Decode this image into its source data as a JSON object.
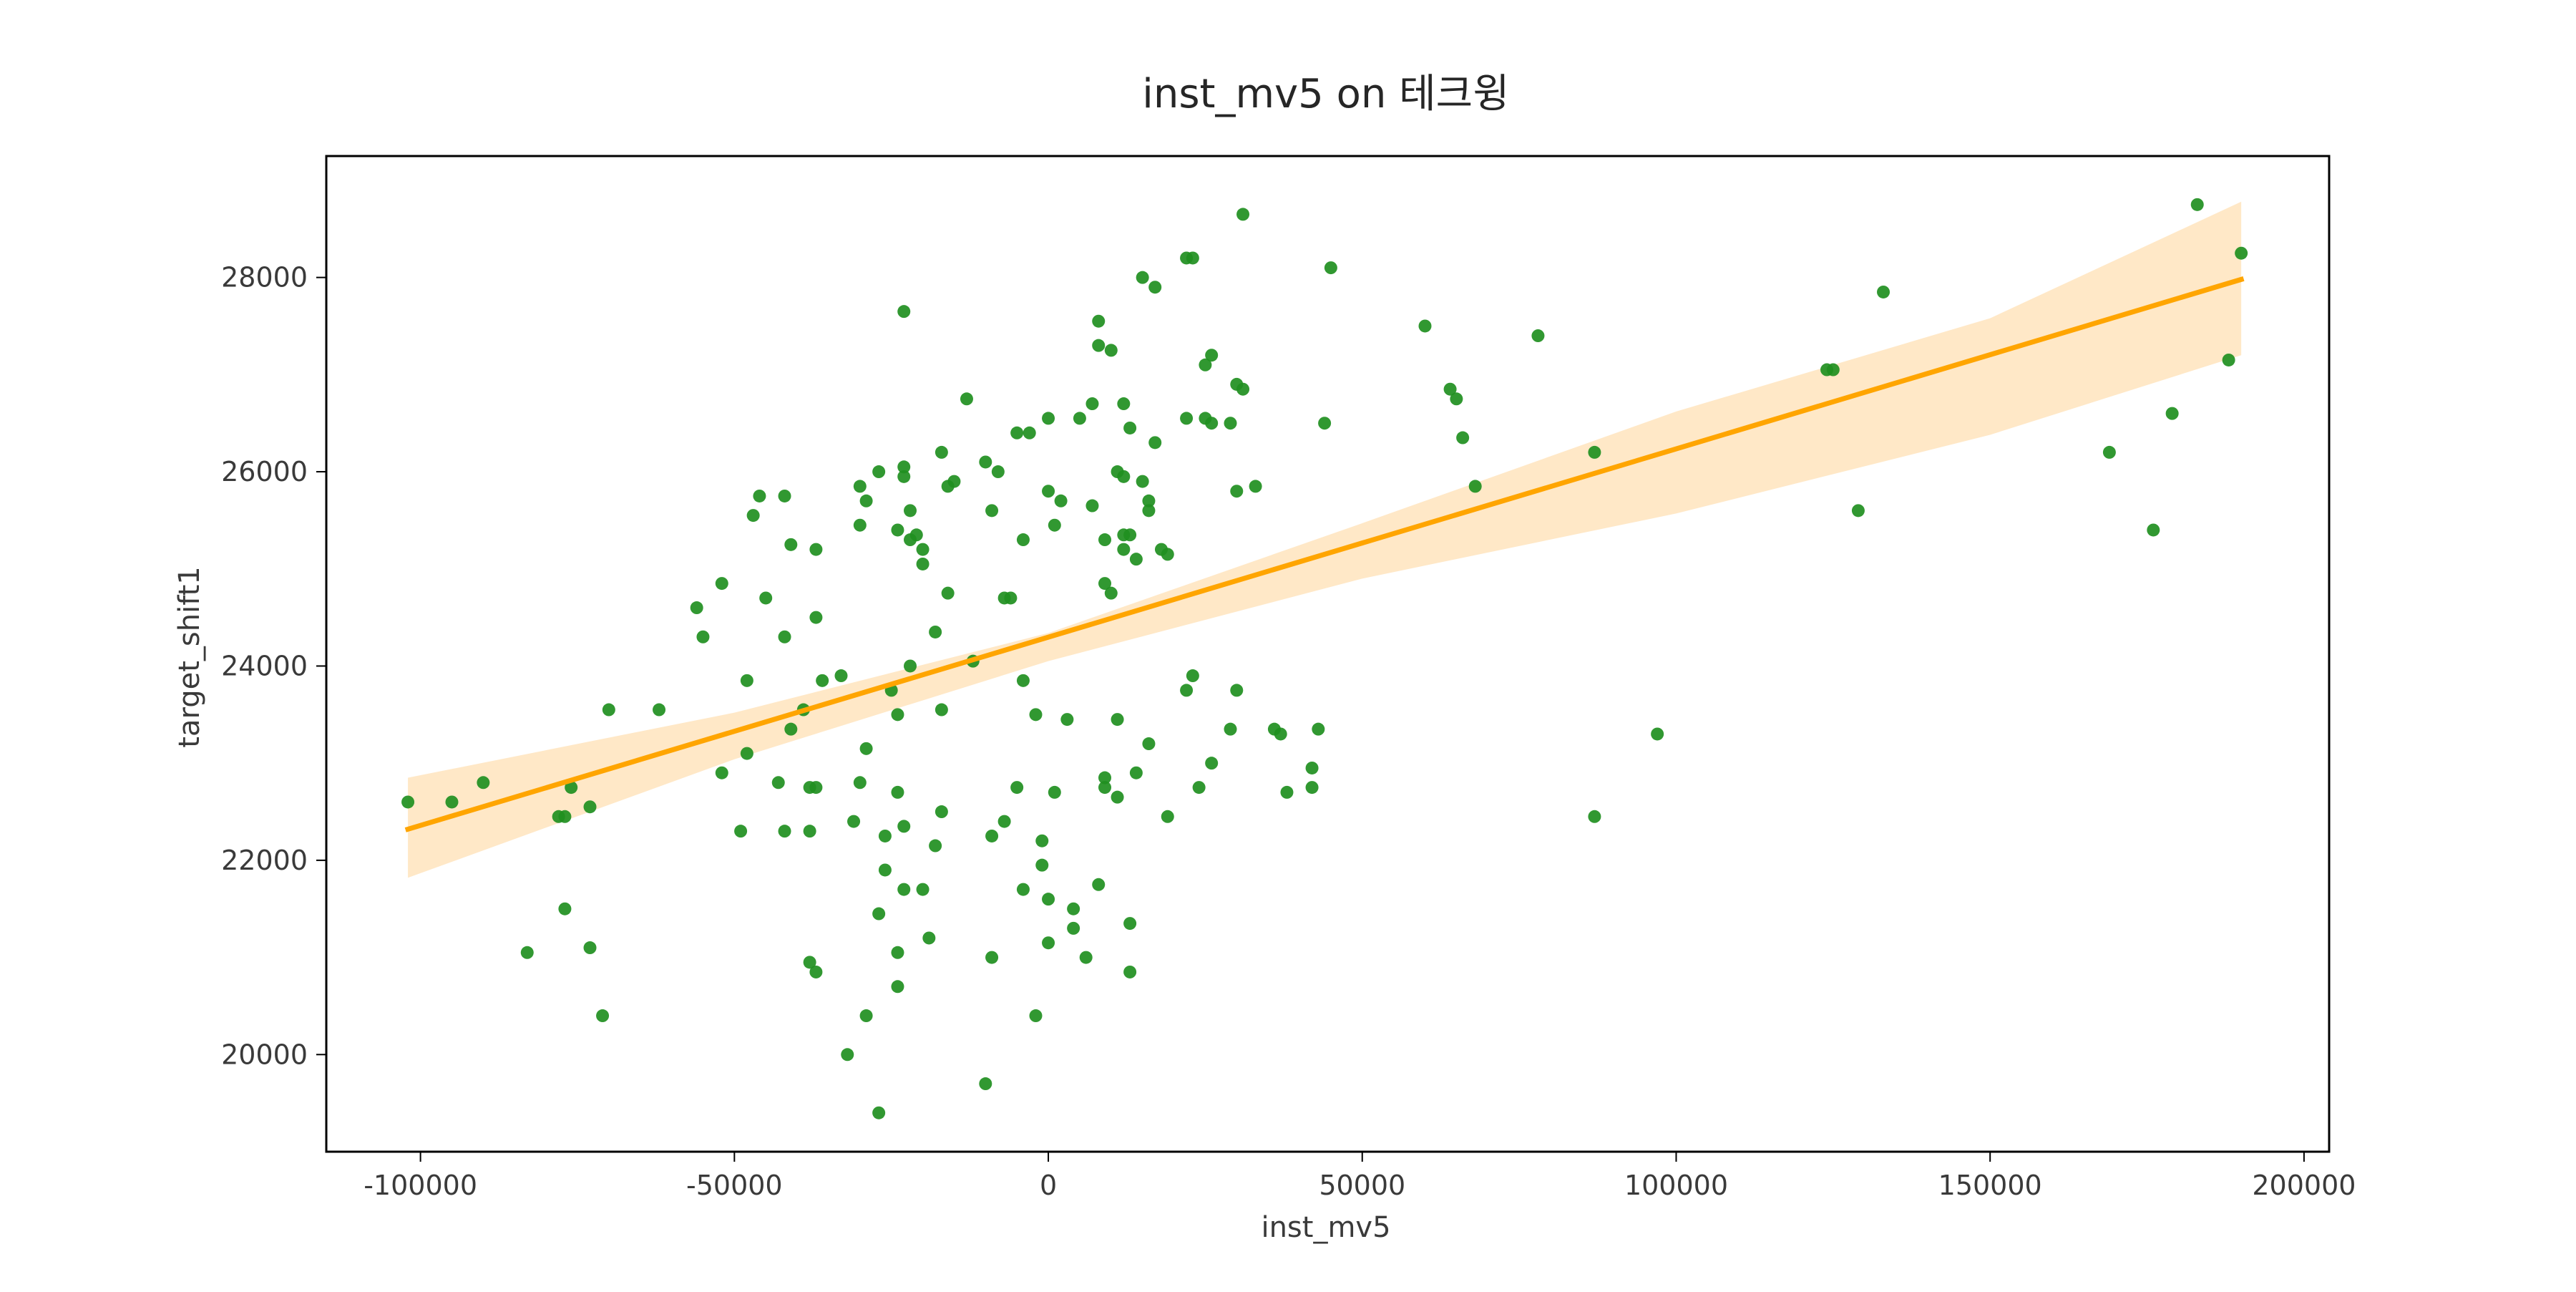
{
  "chart_data": {
    "type": "scatter",
    "title": "inst_mv5 on 테크윙",
    "xlabel": "inst_mv5",
    "ylabel": "target_shift1",
    "xlim": [
      -115000,
      204000
    ],
    "ylim": [
      19000,
      29250
    ],
    "x_ticks": [
      -100000,
      -50000,
      0,
      50000,
      100000,
      150000,
      200000
    ],
    "y_ticks": [
      20000,
      22000,
      24000,
      26000,
      28000
    ],
    "grid": false,
    "legend": "none",
    "colors": {
      "points": "#1f8f1f",
      "regression_line": "#ffa500",
      "confidence_band": "#ffe8c7",
      "frame": "#000000"
    },
    "series": [
      {
        "points": [
          [
            -102000,
            22600
          ],
          [
            -95000,
            22600
          ],
          [
            -90000,
            22800
          ],
          [
            -83000,
            21050
          ],
          [
            -78000,
            22450
          ],
          [
            -77000,
            22450
          ],
          [
            -77000,
            21500
          ],
          [
            -76000,
            22750
          ],
          [
            -73000,
            22550
          ],
          [
            -73000,
            21100
          ],
          [
            -71000,
            20400
          ],
          [
            -70000,
            23550
          ],
          [
            -62000,
            23550
          ],
          [
            -56000,
            24600
          ],
          [
            -55000,
            24300
          ],
          [
            -52000,
            24850
          ],
          [
            -52000,
            22900
          ],
          [
            -48000,
            23850
          ],
          [
            -47000,
            25550
          ],
          [
            -46000,
            25750
          ],
          [
            -45000,
            24700
          ],
          [
            -43000,
            22800
          ],
          [
            -42000,
            25750
          ],
          [
            -42000,
            24300
          ],
          [
            -41000,
            25250
          ],
          [
            -41000,
            23350
          ],
          [
            -49000,
            22300
          ],
          [
            -48000,
            23100
          ],
          [
            -42000,
            22300
          ],
          [
            -39000,
            23550
          ],
          [
            -38000,
            22750
          ],
          [
            -38000,
            22300
          ],
          [
            -38000,
            20950
          ],
          [
            -37000,
            22750
          ],
          [
            -37000,
            20850
          ],
          [
            -37000,
            25200
          ],
          [
            -37000,
            24500
          ],
          [
            -36000,
            23850
          ],
          [
            -33000,
            23900
          ],
          [
            -32000,
            20000
          ],
          [
            -31000,
            22400
          ],
          [
            -30000,
            25450
          ],
          [
            -30000,
            25850
          ],
          [
            -30000,
            22800
          ],
          [
            -29000,
            23150
          ],
          [
            -29000,
            25700
          ],
          [
            -29000,
            20400
          ],
          [
            -27000,
            26000
          ],
          [
            -27000,
            21450
          ],
          [
            -27000,
            19400
          ],
          [
            -26000,
            22250
          ],
          [
            -26000,
            21900
          ],
          [
            -25000,
            23750
          ],
          [
            -24000,
            25400
          ],
          [
            -24000,
            23500
          ],
          [
            -24000,
            22700
          ],
          [
            -24000,
            21050
          ],
          [
            -24000,
            20700
          ],
          [
            -23000,
            27650
          ],
          [
            -23000,
            25950
          ],
          [
            -23000,
            26050
          ],
          [
            -23000,
            22350
          ],
          [
            -23000,
            21700
          ],
          [
            -22000,
            25600
          ],
          [
            -22000,
            25300
          ],
          [
            -22000,
            24000
          ],
          [
            -21000,
            25350
          ],
          [
            -20000,
            25200
          ],
          [
            -20000,
            25050
          ],
          [
            -20000,
            21700
          ],
          [
            -19000,
            21200
          ],
          [
            -18000,
            24350
          ],
          [
            -18000,
            22150
          ],
          [
            -17000,
            26200
          ],
          [
            -17000,
            23550
          ],
          [
            -17000,
            22500
          ],
          [
            -16000,
            24750
          ],
          [
            -16000,
            25850
          ],
          [
            -15000,
            25900
          ],
          [
            -13000,
            26750
          ],
          [
            -12000,
            24050
          ],
          [
            -10000,
            26100
          ],
          [
            -10000,
            19700
          ],
          [
            -9000,
            25600
          ],
          [
            -9000,
            22250
          ],
          [
            -9000,
            21000
          ],
          [
            -8000,
            26000
          ],
          [
            -7000,
            24700
          ],
          [
            -7000,
            22400
          ],
          [
            -6000,
            24700
          ],
          [
            -5000,
            26400
          ],
          [
            -5000,
            22750
          ],
          [
            -4000,
            23850
          ],
          [
            -4000,
            25300
          ],
          [
            -4000,
            21700
          ],
          [
            -3000,
            26400
          ],
          [
            -2000,
            23500
          ],
          [
            -2000,
            20400
          ],
          [
            -1000,
            22200
          ],
          [
            -1000,
            21950
          ],
          [
            0,
            21600
          ],
          [
            0,
            21150
          ],
          [
            0,
            25800
          ],
          [
            0,
            26550
          ],
          [
            1000,
            22700
          ],
          [
            1000,
            25450
          ],
          [
            2000,
            25700
          ],
          [
            3000,
            23450
          ],
          [
            4000,
            21500
          ],
          [
            4000,
            21300
          ],
          [
            5000,
            26550
          ],
          [
            6000,
            21000
          ],
          [
            7000,
            25650
          ],
          [
            7000,
            26700
          ],
          [
            8000,
            27550
          ],
          [
            8000,
            27300
          ],
          [
            8000,
            21750
          ],
          [
            9000,
            22850
          ],
          [
            9000,
            22750
          ],
          [
            9000,
            25300
          ],
          [
            9000,
            24850
          ],
          [
            10000,
            24750
          ],
          [
            10000,
            27250
          ],
          [
            11000,
            22650
          ],
          [
            11000,
            26000
          ],
          [
            11000,
            23450
          ],
          [
            12000,
            25950
          ],
          [
            12000,
            25350
          ],
          [
            12000,
            25200
          ],
          [
            12000,
            26700
          ],
          [
            13000,
            25350
          ],
          [
            13000,
            26450
          ],
          [
            13000,
            21350
          ],
          [
            13000,
            20850
          ],
          [
            14000,
            25100
          ],
          [
            14000,
            22900
          ],
          [
            15000,
            25900
          ],
          [
            15000,
            28000
          ],
          [
            16000,
            25700
          ],
          [
            16000,
            25600
          ],
          [
            16000,
            23200
          ],
          [
            17000,
            26300
          ],
          [
            17000,
            27900
          ],
          [
            18000,
            25200
          ],
          [
            19000,
            25150
          ],
          [
            19000,
            22450
          ],
          [
            22000,
            23750
          ],
          [
            22000,
            26550
          ],
          [
            22000,
            28200
          ],
          [
            23000,
            28200
          ],
          [
            23000,
            23900
          ],
          [
            24000,
            22750
          ],
          [
            25000,
            27100
          ],
          [
            25000,
            26550
          ],
          [
            26000,
            27200
          ],
          [
            26000,
            26500
          ],
          [
            26000,
            23000
          ],
          [
            29000,
            26500
          ],
          [
            29000,
            23350
          ],
          [
            30000,
            23750
          ],
          [
            30000,
            26900
          ],
          [
            30000,
            25800
          ],
          [
            31000,
            26850
          ],
          [
            31000,
            28650
          ],
          [
            33000,
            25850
          ],
          [
            36000,
            23350
          ],
          [
            37000,
            23300
          ],
          [
            38000,
            22700
          ],
          [
            42000,
            22950
          ],
          [
            42000,
            22750
          ],
          [
            43000,
            23350
          ],
          [
            44000,
            26500
          ],
          [
            45000,
            28100
          ],
          [
            60000,
            27500
          ],
          [
            64000,
            26850
          ],
          [
            65000,
            26750
          ],
          [
            66000,
            26350
          ],
          [
            68000,
            25850
          ],
          [
            78000,
            27400
          ],
          [
            87000,
            26200
          ],
          [
            87000,
            22450
          ],
          [
            97000,
            23300
          ],
          [
            124000,
            27050
          ],
          [
            125000,
            27050
          ],
          [
            129000,
            25600
          ],
          [
            133000,
            27850
          ],
          [
            169000,
            26200
          ],
          [
            176000,
            25400
          ],
          [
            179000,
            26600
          ],
          [
            183000,
            28750
          ],
          [
            188000,
            27150
          ],
          [
            190000,
            28250
          ]
        ]
      }
    ],
    "regression": {
      "x_range": [
        -102000,
        190000
      ],
      "y_at_start": 22320,
      "y_at_end": 27980,
      "band_upper": [
        [
          -102000,
          22850
        ],
        [
          -50000,
          23520
        ],
        [
          0,
          24340
        ],
        [
          50000,
          25470
        ],
        [
          100000,
          26620
        ],
        [
          150000,
          27580
        ],
        [
          190000,
          28780
        ]
      ],
      "band_lower": [
        [
          -102000,
          21820
        ],
        [
          -50000,
          23040
        ],
        [
          0,
          24050
        ],
        [
          50000,
          24900
        ],
        [
          100000,
          25570
        ],
        [
          150000,
          26380
        ],
        [
          190000,
          27200
        ]
      ]
    }
  }
}
